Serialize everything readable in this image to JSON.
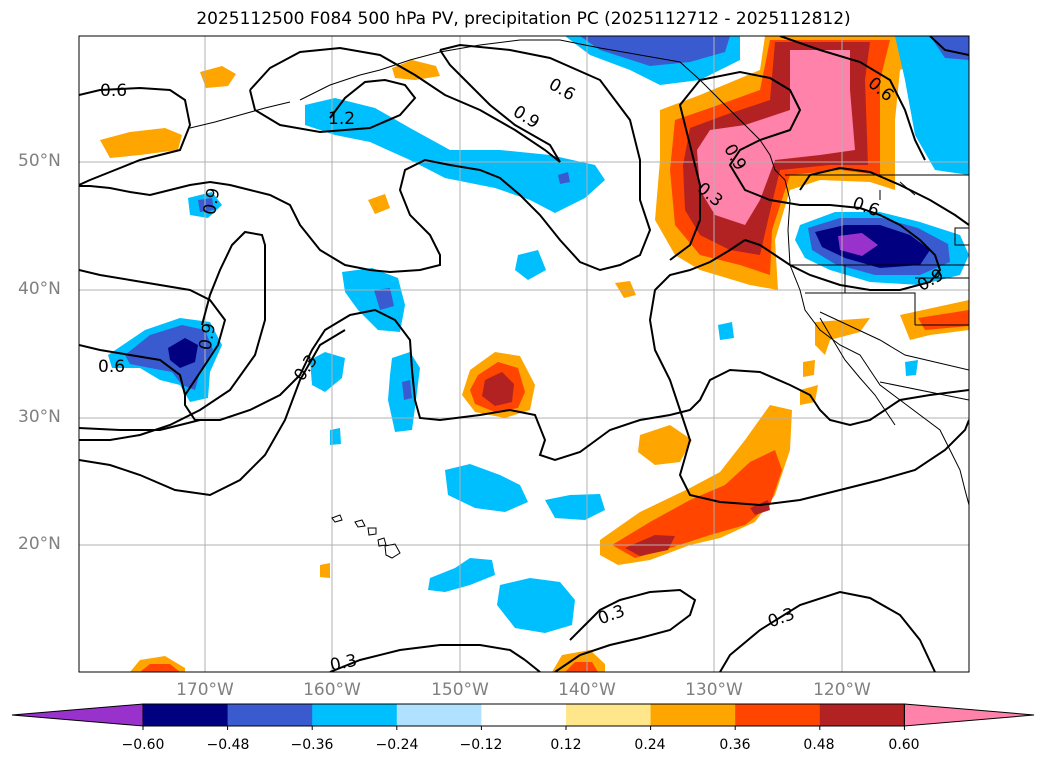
{
  "title": "2025112500 F084 500 hPa PV, precipitation PC (2025112712 - 2025112812)",
  "latitude_labels": [
    "50°N",
    "40°N",
    "30°N",
    "20°N"
  ],
  "longitude_labels": [
    "170°W",
    "160°W",
    "150°W",
    "140°W",
    "130°W",
    "120°W"
  ],
  "contour_labels": [
    "0.6",
    "1.2",
    "0.9",
    "0.6",
    "0.9",
    "0.3",
    "0.6",
    "0.6",
    "0.3",
    "0.3",
    "0.3",
    "0.3",
    "0.6",
    "0.9",
    "0.9",
    "0.9"
  ],
  "colorbar": {
    "ticks": [
      "−0.60",
      "−0.48",
      "−0.36",
      "−0.24",
      "−0.12",
      "0.12",
      "0.24",
      "0.36",
      "0.48",
      "0.60"
    ],
    "colors": [
      "#9932cc",
      "#000080",
      "#3a5bd0",
      "#00bfff",
      "#b0e2ff",
      "#ffffff",
      "#ffe68a",
      "#ffa500",
      "#ff4500",
      "#b22222",
      "#ff82ab"
    ]
  },
  "colors": {
    "coastline": "#000000",
    "gridline": "#b0b0b0",
    "axis_label": "#808080"
  }
}
